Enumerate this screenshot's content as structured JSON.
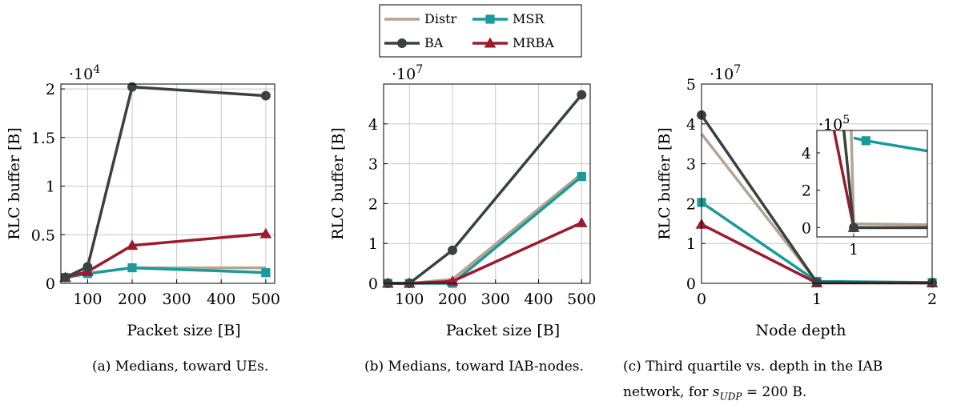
{
  "legend": [
    {
      "name": "Distr",
      "color": "#b5a48f",
      "marker": "none"
    },
    {
      "name": "MSR",
      "color": "#1a9a9a",
      "marker": "square"
    },
    {
      "name": "BA",
      "color": "#3a423e",
      "marker": "circle"
    },
    {
      "name": "MRBA",
      "color": "#9e1a2e",
      "marker": "triangle"
    }
  ],
  "captions": {
    "a": "(a) Medians, toward UEs.",
    "b": "(b) Medians, toward IAB-nodes.",
    "c_line1": "(c) Third quartile vs. depth in the IAB",
    "c_line2_prefix": "network, for ",
    "c_var": "s",
    "c_sub": "UDP",
    "c_line2_suffix": " = 200 B."
  },
  "chart_data": [
    {
      "type": "line",
      "ylabel": "RLC buffer [B]",
      "xlabel": "Packet size [B]",
      "multiplier_base": "·10",
      "multiplier_exp": "4",
      "xlim": [
        40,
        520
      ],
      "ylim": [
        0,
        2.05
      ],
      "xticks": [
        100,
        200,
        300,
        400,
        500
      ],
      "yticks": [
        0,
        0.5,
        1,
        1.5,
        2
      ],
      "ytick_labels": [
        "0",
        "0.5",
        "1",
        "1.5",
        "2"
      ],
      "x": [
        50,
        100,
        200,
        500
      ],
      "series": [
        {
          "name": "Distr",
          "values": [
            0.06,
            0.1,
            0.16,
            0.16
          ]
        },
        {
          "name": "MSR",
          "values": [
            0.06,
            0.1,
            0.16,
            0.11
          ]
        },
        {
          "name": "MRBA",
          "values": [
            0.06,
            0.12,
            0.39,
            0.51
          ]
        },
        {
          "name": "BA",
          "values": [
            0.06,
            0.17,
            2.02,
            1.93
          ]
        }
      ]
    },
    {
      "type": "line",
      "ylabel": "RLC buffer [B]",
      "xlabel": "Packet size [B]",
      "multiplier_base": "·10",
      "multiplier_exp": "7",
      "xlim": [
        40,
        520
      ],
      "ylim": [
        0,
        5
      ],
      "xticks": [
        100,
        200,
        300,
        400,
        500
      ],
      "yticks": [
        0,
        1,
        2,
        3,
        4
      ],
      "ytick_labels": [
        "0",
        "1",
        "2",
        "3",
        "4"
      ],
      "x": [
        50,
        100,
        200,
        500
      ],
      "series": [
        {
          "name": "Distr",
          "values": [
            0,
            0,
            0.1,
            2.75
          ]
        },
        {
          "name": "MSR",
          "values": [
            0,
            0,
            0,
            2.68
          ]
        },
        {
          "name": "MRBA",
          "values": [
            0,
            0,
            0.05,
            1.52
          ]
        },
        {
          "name": "BA",
          "values": [
            0,
            0,
            0.83,
            4.73
          ]
        }
      ]
    },
    {
      "type": "line",
      "ylabel": "RLC buffer [B]",
      "xlabel": "Node depth",
      "multiplier_base": "·10",
      "multiplier_exp": "7",
      "xlim": [
        0,
        2
      ],
      "ylim": [
        0,
        5
      ],
      "xticks": [
        0,
        1,
        2
      ],
      "yticks": [
        0,
        1,
        2,
        3,
        4,
        5
      ],
      "ytick_labels": [
        "0",
        "1",
        "2",
        "3",
        "4",
        "5"
      ],
      "x": [
        0,
        1,
        2
      ],
      "series": [
        {
          "name": "Distr",
          "values": [
            3.75,
            0.04,
            0.02
          ]
        },
        {
          "name": "MSR",
          "values": [
            2.03,
            0.05,
            0.02
          ]
        },
        {
          "name": "MRBA",
          "values": [
            1.48,
            0.01,
            0.01
          ]
        },
        {
          "name": "BA",
          "values": [
            4.22,
            0.02,
            0.01
          ]
        }
      ],
      "inset": {
        "multiplier_base": "·10",
        "multiplier_exp": "5",
        "xlim": [
          0.85,
          1.3
        ],
        "ylim": [
          -0.5,
          5.2
        ],
        "xticks": [
          1
        ],
        "yticks": [
          0,
          2,
          4
        ],
        "ytick_labels": [
          "0",
          "2",
          "4"
        ],
        "series": [
          {
            "name": "Distr",
            "points": [
              [
                0.99,
                5.2
              ],
              [
                1.0,
                0.2
              ],
              [
                1.3,
                0.15
              ]
            ]
          },
          {
            "name": "MSR",
            "points": [
              [
                1.0,
                4.8
              ],
              [
                1.05,
                4.65
              ],
              [
                1.3,
                4.1
              ]
            ]
          },
          {
            "name": "MRBA",
            "points": [
              [
                0.92,
                5.2
              ],
              [
                1.0,
                0.0
              ],
              [
                1.3,
                0.0
              ]
            ]
          },
          {
            "name": "BA",
            "points": [
              [
                0.96,
                5.2
              ],
              [
                1.0,
                0.0
              ],
              [
                1.3,
                0.0
              ]
            ]
          }
        ]
      }
    }
  ]
}
